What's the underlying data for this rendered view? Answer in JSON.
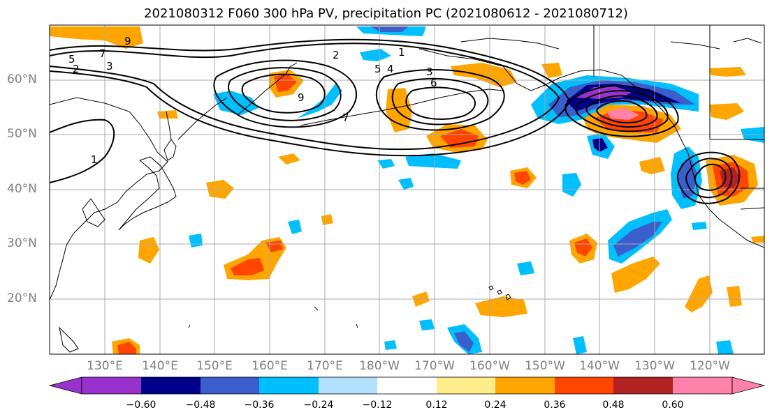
{
  "title": "2021080312 F060 300 hPa PV, precipitation PC (2021080612 - 2021080712)",
  "map": {
    "lat_labels": [
      "60°N",
      "50°N",
      "40°N",
      "30°N",
      "20°N"
    ],
    "lon_labels": [
      "130°E",
      "140°E",
      "150°E",
      "160°E",
      "170°E",
      "180°W",
      "170°W",
      "160°W",
      "150°W",
      "140°W",
      "130°W",
      "120°W"
    ],
    "contour_labels": [
      "5",
      "2",
      "7",
      "3",
      "9",
      "2",
      "1",
      "5",
      "4",
      "3",
      "6",
      "7",
      "9",
      "1"
    ]
  },
  "colorbar": {
    "ticks": [
      "−0.60",
      "−0.48",
      "−0.36",
      "−0.24",
      "−0.12",
      "0.12",
      "0.24",
      "0.36",
      "0.48",
      "0.60"
    ],
    "colors": [
      "#9932cc",
      "#00008b",
      "#3a5fcd",
      "#00bfff",
      "#b0e2ff",
      "#ffffff",
      "#ffec8b",
      "#ffa500",
      "#ff4500",
      "#b22222",
      "#ff82ab"
    ]
  }
}
